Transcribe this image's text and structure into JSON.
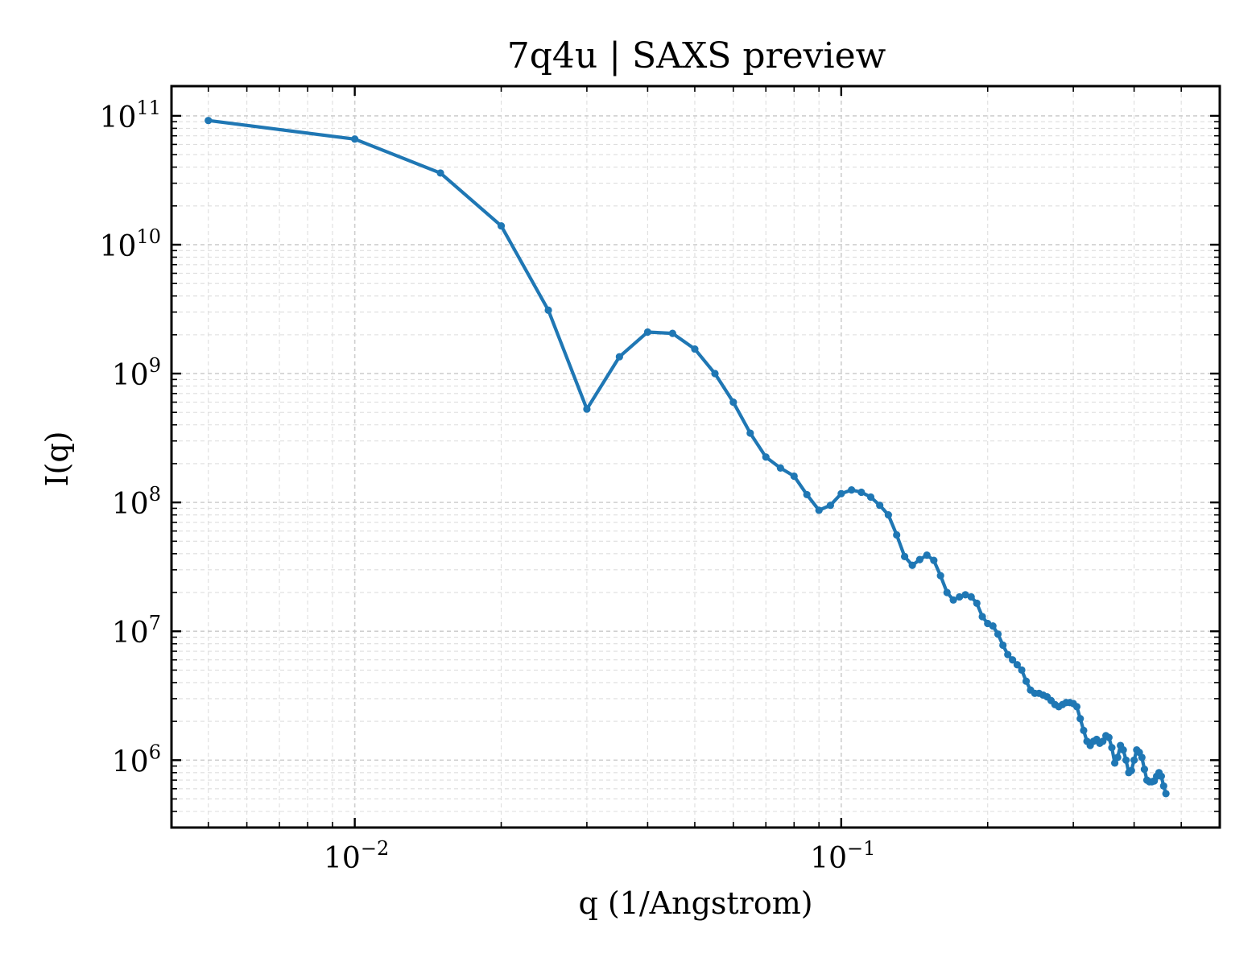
{
  "chart_data": {
    "type": "line",
    "title": "7q4u | SAXS preview",
    "xlabel": "q (1/Angstrom)",
    "ylabel": "I(q)",
    "xscale": "log",
    "yscale": "log",
    "xlim": [
      0.0042,
      0.6
    ],
    "ylim": [
      300000,
      170000000000
    ],
    "grid": true,
    "xticks": [
      {
        "value": 0.01,
        "base": "10",
        "exp": "−2"
      },
      {
        "value": 0.1,
        "base": "10",
        "exp": "−1"
      }
    ],
    "yticks": [
      {
        "value": 1000000,
        "base": "10",
        "exp": "6"
      },
      {
        "value": 10000000,
        "base": "10",
        "exp": "7"
      },
      {
        "value": 100000000,
        "base": "10",
        "exp": "8"
      },
      {
        "value": 1000000000,
        "base": "10",
        "exp": "9"
      },
      {
        "value": 10000000000,
        "base": "10",
        "exp": "10"
      },
      {
        "value": 100000000000,
        "base": "10",
        "exp": "11"
      }
    ],
    "series": [
      {
        "color": "#1f77b4",
        "points": [
          [
            0.005,
            92000000000.0
          ],
          [
            0.01,
            66000000000.0
          ],
          [
            0.015,
            36000000000.0
          ],
          [
            0.02,
            14000000000.0
          ],
          [
            0.025,
            3100000000.0
          ],
          [
            0.03,
            530000000.0
          ],
          [
            0.035,
            1350000000.0
          ],
          [
            0.04,
            2100000000.0
          ],
          [
            0.045,
            2050000000.0
          ],
          [
            0.05,
            1550000000.0
          ],
          [
            0.055,
            1000000000.0
          ],
          [
            0.06,
            600000000.0
          ],
          [
            0.065,
            345000000.0
          ],
          [
            0.07,
            225000000.0
          ],
          [
            0.075,
            185000000.0
          ],
          [
            0.08,
            160000000.0
          ],
          [
            0.085,
            115000000.0
          ],
          [
            0.09,
            87000000.0
          ],
          [
            0.095,
            95000000.0
          ],
          [
            0.1,
            117000000.0
          ],
          [
            0.105,
            125000000.0
          ],
          [
            0.11,
            120000000.0
          ],
          [
            0.115,
            110000000.0
          ],
          [
            0.12,
            95000000.0
          ],
          [
            0.125,
            80000000.0
          ],
          [
            0.13,
            56000000.0
          ],
          [
            0.135,
            38000000.0
          ],
          [
            0.14,
            32500000.0
          ],
          [
            0.145,
            36000000.0
          ],
          [
            0.15,
            39000000.0
          ],
          [
            0.155,
            35500000.0
          ],
          [
            0.16,
            27000000.0
          ],
          [
            0.165,
            20000000.0
          ],
          [
            0.17,
            17500000.0
          ],
          [
            0.175,
            18500000.0
          ],
          [
            0.18,
            19200000.0
          ],
          [
            0.185,
            18500000.0
          ],
          [
            0.19,
            16500000.0
          ],
          [
            0.195,
            13000000.0
          ],
          [
            0.2,
            11500000.0
          ],
          [
            0.205,
            11000000.0
          ],
          [
            0.21,
            9500000.0
          ],
          [
            0.215,
            7800000.0
          ],
          [
            0.22,
            6600000.0
          ],
          [
            0.225,
            6000000.0
          ],
          [
            0.23,
            5500000.0
          ],
          [
            0.235,
            5000000.0
          ],
          [
            0.24,
            4100000.0
          ],
          [
            0.245,
            3500000.0
          ],
          [
            0.25,
            3300000.0
          ],
          [
            0.255,
            3300000.0
          ],
          [
            0.26,
            3200000.0
          ],
          [
            0.265,
            3100000.0
          ],
          [
            0.27,
            2900000.0
          ],
          [
            0.275,
            2700000.0
          ],
          [
            0.28,
            2600000.0
          ],
          [
            0.285,
            2700000.0
          ],
          [
            0.29,
            2800000.0
          ],
          [
            0.295,
            2800000.0
          ],
          [
            0.3,
            2750000.0
          ],
          [
            0.305,
            2600000.0
          ],
          [
            0.31,
            2100000.0
          ],
          [
            0.315,
            1700000.0
          ],
          [
            0.32,
            1400000.0
          ],
          [
            0.325,
            1300000.0
          ],
          [
            0.33,
            1400000.0
          ],
          [
            0.335,
            1450000.0
          ],
          [
            0.34,
            1350000.0
          ],
          [
            0.345,
            1400000.0
          ],
          [
            0.35,
            1550000.0
          ],
          [
            0.355,
            1500000.0
          ],
          [
            0.36,
            1250000.0
          ],
          [
            0.365,
            950000.0
          ],
          [
            0.37,
            1050000.0
          ],
          [
            0.375,
            1300000.0
          ],
          [
            0.38,
            1200000.0
          ],
          [
            0.385,
            1000000.0
          ],
          [
            0.39,
            800000.0
          ],
          [
            0.395,
            830000.0
          ],
          [
            0.4,
            1000000.0
          ],
          [
            0.405,
            1200000.0
          ],
          [
            0.41,
            1150000.0
          ],
          [
            0.415,
            1050000.0
          ],
          [
            0.42,
            850000.0
          ],
          [
            0.425,
            700000.0
          ],
          [
            0.43,
            680000.0
          ],
          [
            0.435,
            680000.0
          ],
          [
            0.44,
            690000.0
          ],
          [
            0.445,
            750000.0
          ],
          [
            0.45,
            800000.0
          ],
          [
            0.455,
            750000.0
          ],
          [
            0.46,
            630000.0
          ],
          [
            0.465,
            550000.0
          ]
        ]
      }
    ]
  }
}
